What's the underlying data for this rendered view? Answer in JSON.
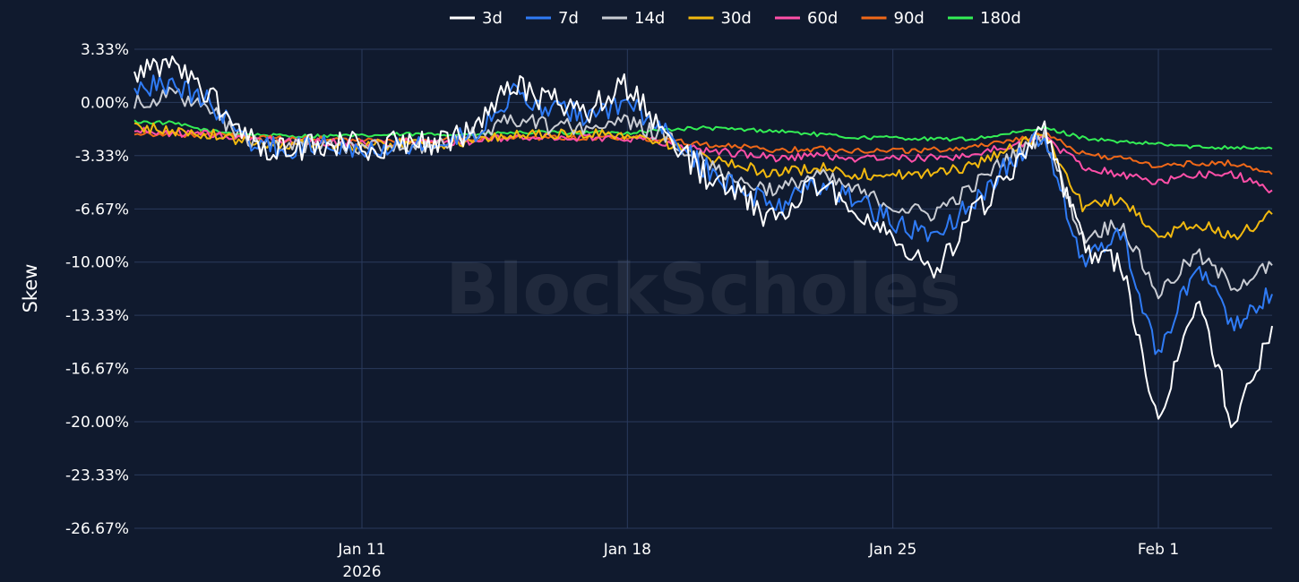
{
  "chart_data": {
    "type": "line",
    "title": "",
    "xlabel": "",
    "ylabel": "Skew",
    "watermark": "BlockScholes",
    "grid": true,
    "legend_position": "top-center",
    "ylim": [
      -26.67,
      3.33
    ],
    "y_ticks": [
      3.33,
      0.0,
      -3.33,
      -6.67,
      -10.0,
      -13.33,
      -16.67,
      -20.0,
      -23.33,
      -26.67
    ],
    "y_tick_labels": [
      "3.33%",
      "0.00%",
      "-3.33%",
      "-6.67%",
      "-10.00%",
      "-13.33%",
      "-16.67%",
      "-20.00%",
      "-23.33%",
      "-26.67%"
    ],
    "xlim": [
      "2026-01-05",
      "2026-02-04"
    ],
    "x_ticks": [
      "2026-01-11",
      "2026-01-18",
      "2026-01-25",
      "2026-02-01"
    ],
    "x_tick_labels": [
      "Jan 11\n2026",
      "Jan 18",
      "Jan 25",
      "Feb 1"
    ],
    "x": [
      "2026-01-05",
      "2026-01-06",
      "2026-01-07",
      "2026-01-08",
      "2026-01-09",
      "2026-01-10",
      "2026-01-11",
      "2026-01-12",
      "2026-01-13",
      "2026-01-14",
      "2026-01-15",
      "2026-01-16",
      "2026-01-17",
      "2026-01-18",
      "2026-01-19",
      "2026-01-20",
      "2026-01-21",
      "2026-01-22",
      "2026-01-23",
      "2026-01-24",
      "2026-01-25",
      "2026-01-26",
      "2026-01-27",
      "2026-01-28",
      "2026-01-29",
      "2026-01-30",
      "2026-01-31",
      "2026-02-01",
      "2026-02-02",
      "2026-02-03",
      "2026-02-04"
    ],
    "series": [
      {
        "name": "3d",
        "color": "#ffffff",
        "values": [
          1.5,
          2.5,
          0.5,
          -2.5,
          -3.0,
          -2.5,
          -2.8,
          -2.5,
          -2.8,
          -1.5,
          1.0,
          0.0,
          -0.5,
          1.0,
          -2.0,
          -4.5,
          -6.0,
          -7.5,
          -5.0,
          -6.5,
          -8.5,
          -10.5,
          -7.5,
          -4.5,
          -2.0,
          -9.0,
          -10.0,
          -20.0,
          -12.0,
          -20.5,
          -14.0
        ]
      },
      {
        "name": "7d",
        "color": "#2f7bf5",
        "values": [
          1.0,
          1.2,
          0.0,
          -2.5,
          -3.0,
          -2.5,
          -2.8,
          -2.6,
          -2.7,
          -1.8,
          0.5,
          -0.5,
          -0.8,
          0.0,
          -2.0,
          -4.0,
          -5.5,
          -6.5,
          -5.0,
          -6.0,
          -7.5,
          -8.5,
          -6.5,
          -4.0,
          -2.0,
          -10.0,
          -8.0,
          -16.0,
          -10.0,
          -14.0,
          -12.0
        ]
      },
      {
        "name": "14d",
        "color": "#c9ccd3",
        "values": [
          0.0,
          0.5,
          -0.5,
          -2.5,
          -2.8,
          -2.6,
          -2.8,
          -2.7,
          -2.8,
          -2.0,
          -1.0,
          -1.5,
          -1.5,
          -1.2,
          -2.2,
          -3.5,
          -5.0,
          -5.5,
          -4.5,
          -5.5,
          -6.5,
          -7.0,
          -5.5,
          -3.5,
          -2.0,
          -8.5,
          -7.5,
          -12.0,
          -9.5,
          -11.5,
          -10.2
        ]
      },
      {
        "name": "30d",
        "color": "#f2b90f",
        "values": [
          -1.5,
          -1.8,
          -2.0,
          -2.5,
          -2.6,
          -2.6,
          -2.7,
          -2.6,
          -2.6,
          -2.4,
          -2.0,
          -2.0,
          -2.0,
          -2.0,
          -2.5,
          -3.5,
          -4.0,
          -4.5,
          -4.0,
          -4.5,
          -4.5,
          -4.5,
          -4.0,
          -3.0,
          -2.0,
          -6.5,
          -6.0,
          -8.5,
          -7.5,
          -8.5,
          -7.0
        ]
      },
      {
        "name": "60d",
        "color": "#ff4fa8",
        "values": [
          -1.8,
          -1.9,
          -2.0,
          -2.3,
          -2.4,
          -2.5,
          -2.5,
          -2.5,
          -2.5,
          -2.4,
          -2.2,
          -2.2,
          -2.2,
          -2.2,
          -2.5,
          -3.0,
          -3.2,
          -3.5,
          -3.3,
          -3.5,
          -3.5,
          -3.5,
          -3.3,
          -2.8,
          -2.2,
          -4.0,
          -4.5,
          -5.0,
          -4.5,
          -4.5,
          -5.5
        ]
      },
      {
        "name": "90d",
        "color": "#f06818",
        "values": [
          -1.9,
          -2.0,
          -2.0,
          -2.2,
          -2.3,
          -2.3,
          -2.4,
          -2.4,
          -2.4,
          -2.3,
          -2.2,
          -2.2,
          -2.2,
          -2.2,
          -2.3,
          -2.6,
          -2.8,
          -3.0,
          -2.9,
          -3.0,
          -3.0,
          -3.0,
          -2.8,
          -2.4,
          -2.0,
          -3.2,
          -3.5,
          -4.0,
          -3.8,
          -3.8,
          -4.5
        ]
      },
      {
        "name": "180d",
        "color": "#33ee55",
        "values": [
          -1.2,
          -1.3,
          -1.8,
          -2.0,
          -2.1,
          -2.1,
          -2.1,
          -2.0,
          -2.0,
          -2.0,
          -1.9,
          -1.9,
          -1.9,
          -1.9,
          -1.7,
          -1.6,
          -1.7,
          -1.8,
          -2.0,
          -2.2,
          -2.2,
          -2.3,
          -2.3,
          -2.0,
          -1.6,
          -2.2,
          -2.5,
          -2.6,
          -2.8,
          -2.8,
          -2.9
        ]
      }
    ]
  }
}
